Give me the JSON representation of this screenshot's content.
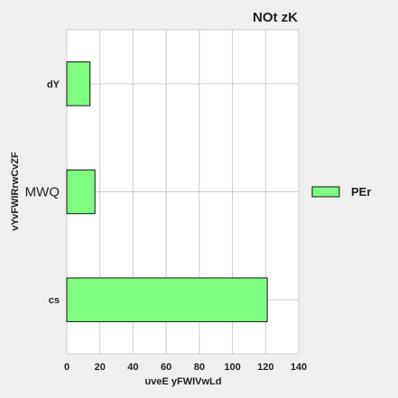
{
  "chart_data": {
    "type": "bar",
    "orientation": "horizontal",
    "title": "NOt zK",
    "xlabel": "uveE yFWIVwLd",
    "ylabel": "vYvFWIRrwCvZF",
    "categories": [
      "cs",
      "MWQ",
      "dY"
    ],
    "category_label_sizes": [
      "small",
      "large",
      "small"
    ],
    "series": [
      {
        "name": "PEr",
        "values": [
          121,
          17,
          14
        ],
        "color": "#7fff7f"
      }
    ],
    "xlim": [
      0,
      140
    ],
    "xticks": [
      "0",
      "20",
      "40",
      "60",
      "80",
      "100",
      "120",
      "140"
    ],
    "grid": true,
    "legend_position": "right",
    "colors": {
      "bar_fill": "#7fff7f",
      "bar_stroke": "#111111",
      "plot_bg": "#ffffff",
      "page_bg": "#efefef",
      "grid": "#cccccc"
    }
  }
}
